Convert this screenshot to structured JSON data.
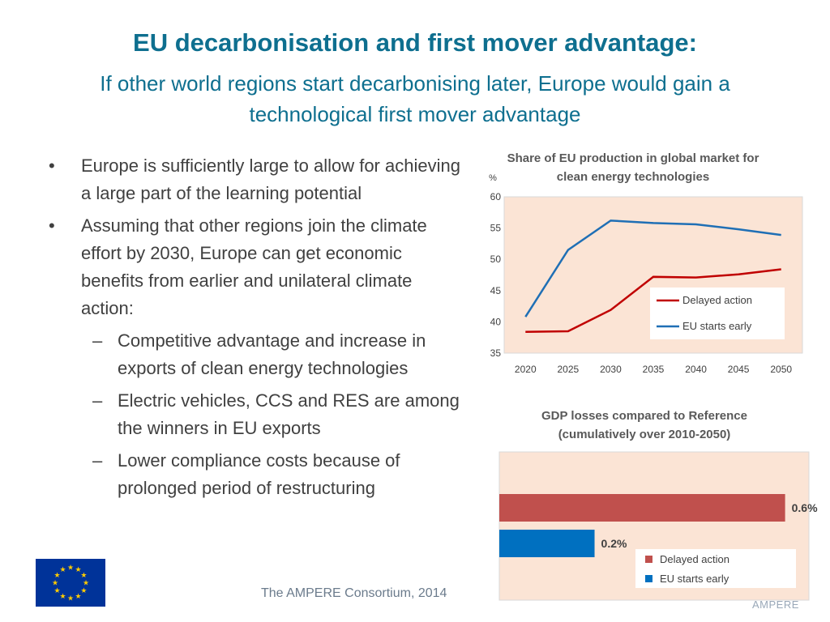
{
  "slide": {
    "title": "EU decarbonisation and first mover advantage:",
    "subtitle": "If other world regions start decarbonising later, Europe would gain a technological first mover advantage",
    "bullets": [
      {
        "level": 1,
        "text": "Europe is sufficiently large to allow for achieving a large part of the learning potential"
      },
      {
        "level": 1,
        "text": "Assuming that other regions join the climate effort by 2030, Europe can get economic benefits from earlier and unilateral climate action:"
      },
      {
        "level": 2,
        "text": "Competitive advantage and increase in exports of clean energy technologies"
      },
      {
        "level": 2,
        "text": "Electric vehicles, CCS and RES are among the winners in EU exports"
      },
      {
        "level": 2,
        "text": "Lower compliance costs because of prolonged period of restructuring"
      }
    ],
    "bullet_marks": {
      "level1": "•",
      "level2": "–"
    },
    "footer": "The AMPERE Consortium, 2014",
    "brand": "AMPERE",
    "flag_icon": "eu-flag-icon"
  },
  "colors": {
    "title": "#0e6f8f",
    "plot_bg": "#fbe4d5",
    "delayed_action": "#c00000",
    "eu_starts_early": "#1f6fb5",
    "bar_delayed": "#c0504d",
    "bar_early": "#0070c0"
  },
  "chart_data": [
    {
      "type": "line",
      "title": "Share of EU production in global market for clean energy technologies",
      "ylabel": "%",
      "x": [
        "2020",
        "2025",
        "2030",
        "2035",
        "2040",
        "2045",
        "2050"
      ],
      "ylim": [
        35,
        60
      ],
      "yticks": [
        "35",
        "40",
        "45",
        "50",
        "55",
        "60"
      ],
      "grid": false,
      "legend": "bottom-right",
      "series": [
        {
          "name": "Delayed action",
          "values": [
            38.4,
            38.5,
            41.9,
            47.2,
            47.1,
            47.6,
            48.4
          ]
        },
        {
          "name": "EU starts early",
          "values": [
            40.8,
            51.5,
            56.2,
            55.8,
            55.6,
            54.8,
            53.9
          ]
        }
      ]
    },
    {
      "type": "bar",
      "orientation": "horizontal",
      "title": "GDP losses compared to Reference (cumulatively over 2010-2050)",
      "xlim": [
        0,
        0.65
      ],
      "legend": "bottom-right",
      "series": [
        {
          "name": "Delayed action",
          "value": 0.6,
          "label": "0.6%"
        },
        {
          "name": "EU starts early",
          "value": 0.2,
          "label": "0.2%"
        }
      ]
    }
  ]
}
